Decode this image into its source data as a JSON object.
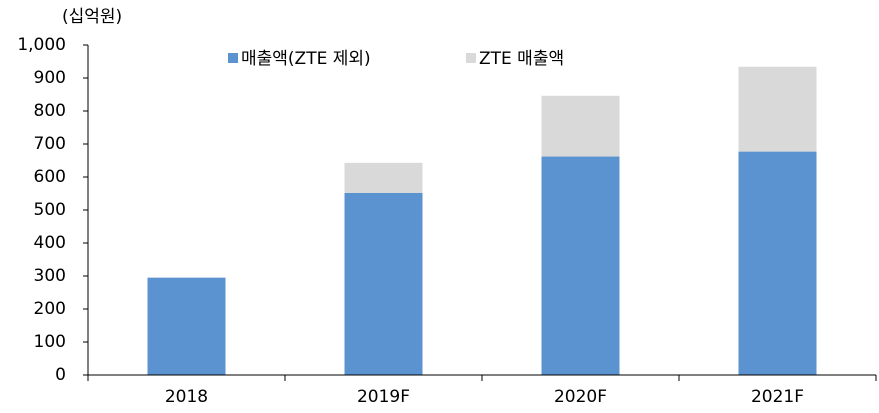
{
  "chart_data": {
    "type": "stacked_bar",
    "y_label": "(십억원)",
    "categories": [
      "2018",
      "2019F",
      "2020F",
      "2021F"
    ],
    "series": [
      {
        "name": "매출액(ZTE 제외)",
        "color": "#5a93d0",
        "values": [
          295,
          552,
          662,
          677
        ]
      },
      {
        "name": "ZTE 매출액",
        "color": "#d9d9d9",
        "values": [
          0,
          91,
          184,
          257
        ]
      }
    ],
    "ylim": [
      0,
      1000
    ],
    "yticks": [
      0,
      100,
      200,
      300,
      400,
      500,
      600,
      700,
      800,
      900,
      {
        "value": 1000,
        "label": "1,000"
      }
    ],
    "legend": "top"
  }
}
